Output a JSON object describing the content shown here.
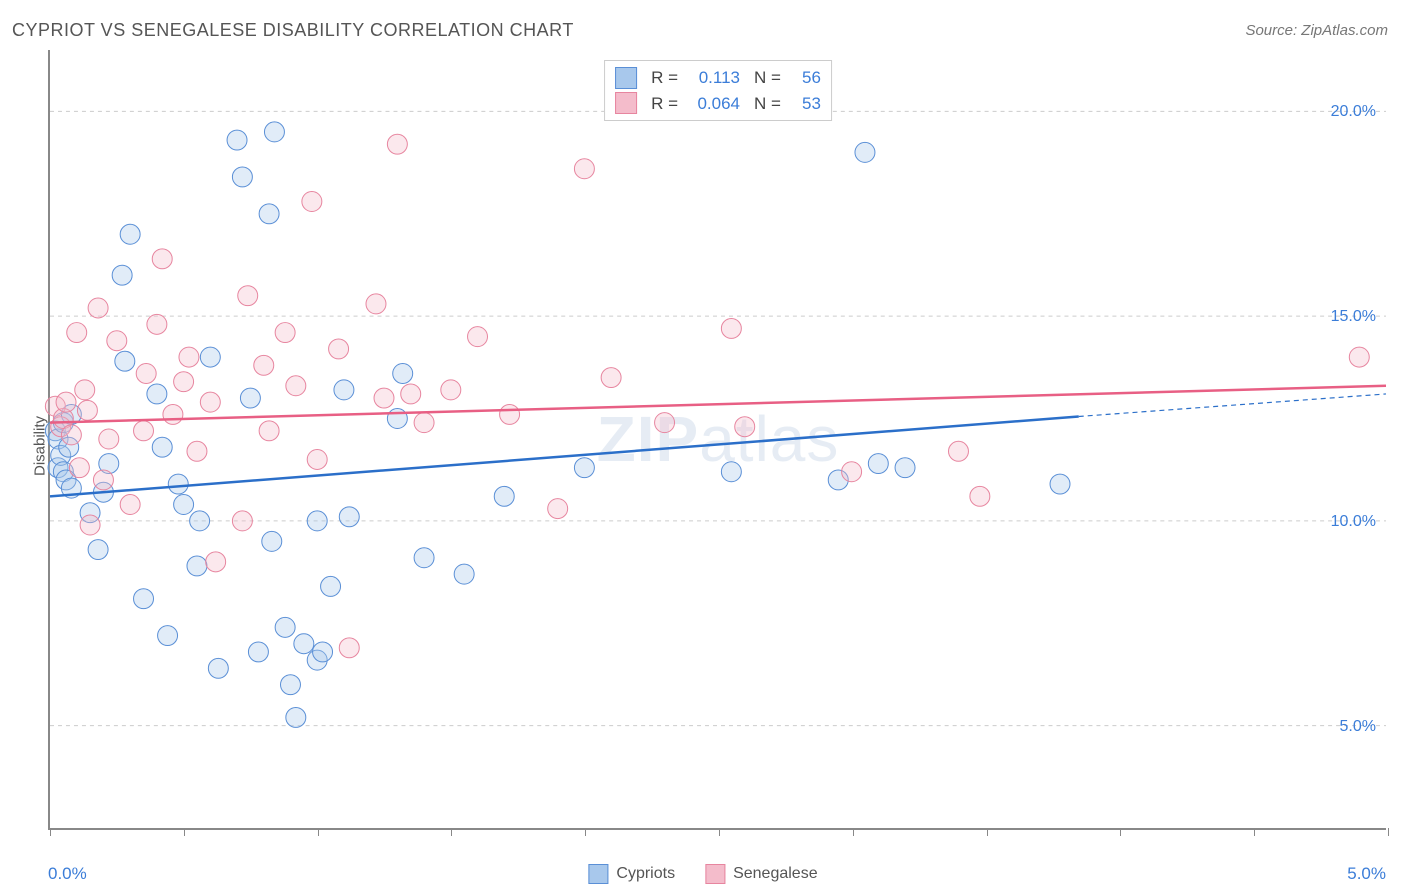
{
  "title": "CYPRIOT VS SENEGALESE DISABILITY CORRELATION CHART",
  "source": "Source: ZipAtlas.com",
  "watermark_zip": "ZIP",
  "watermark_atlas": "atlas",
  "yaxis_title": "Disability",
  "chart": {
    "type": "scatter",
    "background_color": "#ffffff",
    "grid_color": "#cccccc",
    "grid_dash": "4,4",
    "axis_color": "#888888",
    "xlim": [
      0,
      5
    ],
    "ylim": [
      2.5,
      21.5
    ],
    "xtick_positions": [
      0,
      0.5,
      1.0,
      1.5,
      2.0,
      2.5,
      3.0,
      3.5,
      4.0,
      4.5,
      5.0
    ],
    "xtick_labels": {
      "left": "0.0%",
      "right": "5.0%"
    },
    "yticks": [
      {
        "val": 5.0,
        "label": "5.0%"
      },
      {
        "val": 10.0,
        "label": "10.0%"
      },
      {
        "val": 15.0,
        "label": "15.0%"
      },
      {
        "val": 20.0,
        "label": "20.0%"
      }
    ],
    "label_color": "#3b7dd8",
    "label_fontsize": 16,
    "title_fontsize": 18,
    "title_color": "#555555",
    "marker_radius": 10,
    "marker_stroke_width": 1,
    "marker_fill_opacity": 0.35,
    "series": [
      {
        "name": "Cypriots",
        "fill": "#a8c8ec",
        "stroke": "#5a8fd6",
        "line_color": "#2b6fc9",
        "line_width": 2.5,
        "legend_R": "0.113",
        "legend_N": "56",
        "trend": {
          "x1": 0,
          "y1": 10.6,
          "x2_solid": 3.85,
          "y2_solid": 12.55,
          "x2_dash": 5.0,
          "y2_dash": 13.1
        },
        "points": [
          [
            0.02,
            12.2
          ],
          [
            0.03,
            12.0
          ],
          [
            0.03,
            11.3
          ],
          [
            0.04,
            11.6
          ],
          [
            0.05,
            11.2
          ],
          [
            0.05,
            12.4
          ],
          [
            0.06,
            11.0
          ],
          [
            0.07,
            11.8
          ],
          [
            0.08,
            10.8
          ],
          [
            0.08,
            12.6
          ],
          [
            0.15,
            10.2
          ],
          [
            0.18,
            9.3
          ],
          [
            0.2,
            10.7
          ],
          [
            0.22,
            11.4
          ],
          [
            0.27,
            16.0
          ],
          [
            0.28,
            13.9
          ],
          [
            0.3,
            17.0
          ],
          [
            0.35,
            8.1
          ],
          [
            0.4,
            13.1
          ],
          [
            0.44,
            7.2
          ],
          [
            0.5,
            10.4
          ],
          [
            0.55,
            8.9
          ],
          [
            0.56,
            10.0
          ],
          [
            0.6,
            14.0
          ],
          [
            0.63,
            6.4
          ],
          [
            0.7,
            19.3
          ],
          [
            0.72,
            18.4
          ],
          [
            0.75,
            13.0
          ],
          [
            0.78,
            6.8
          ],
          [
            0.82,
            17.5
          ],
          [
            0.83,
            9.5
          ],
          [
            0.84,
            19.5
          ],
          [
            0.88,
            7.4
          ],
          [
            0.9,
            6.0
          ],
          [
            0.92,
            5.2
          ],
          [
            0.95,
            7.0
          ],
          [
            1.0,
            10.0
          ],
          [
            1.0,
            6.6
          ],
          [
            1.02,
            6.8
          ],
          [
            1.05,
            8.4
          ],
          [
            1.1,
            13.2
          ],
          [
            1.12,
            10.1
          ],
          [
            1.3,
            12.5
          ],
          [
            1.32,
            13.6
          ],
          [
            1.4,
            9.1
          ],
          [
            1.55,
            8.7
          ],
          [
            1.7,
            10.6
          ],
          [
            2.0,
            11.3
          ],
          [
            2.55,
            11.2
          ],
          [
            2.95,
            11.0
          ],
          [
            3.05,
            19.0
          ],
          [
            3.1,
            11.4
          ],
          [
            3.2,
            11.3
          ],
          [
            3.78,
            10.9
          ],
          [
            0.42,
            11.8
          ],
          [
            0.48,
            10.9
          ]
        ]
      },
      {
        "name": "Senegalese",
        "fill": "#f4bccb",
        "stroke": "#e7859f",
        "line_color": "#e85f84",
        "line_width": 2.5,
        "legend_R": "0.064",
        "legend_N": "53",
        "trend": {
          "x1": 0,
          "y1": 12.4,
          "x2_solid": 5.0,
          "y2_solid": 13.3,
          "x2_dash": 5.0,
          "y2_dash": 13.3
        },
        "points": [
          [
            0.02,
            12.8
          ],
          [
            0.04,
            12.3
          ],
          [
            0.05,
            12.5
          ],
          [
            0.06,
            12.9
          ],
          [
            0.08,
            12.1
          ],
          [
            0.1,
            14.6
          ],
          [
            0.11,
            11.3
          ],
          [
            0.13,
            13.2
          ],
          [
            0.14,
            12.7
          ],
          [
            0.18,
            15.2
          ],
          [
            0.2,
            11.0
          ],
          [
            0.22,
            12.0
          ],
          [
            0.25,
            14.4
          ],
          [
            0.3,
            10.4
          ],
          [
            0.35,
            12.2
          ],
          [
            0.4,
            14.8
          ],
          [
            0.42,
            16.4
          ],
          [
            0.5,
            13.4
          ],
          [
            0.55,
            11.7
          ],
          [
            0.6,
            12.9
          ],
          [
            0.62,
            9.0
          ],
          [
            0.72,
            10.0
          ],
          [
            0.74,
            15.5
          ],
          [
            0.8,
            13.8
          ],
          [
            0.82,
            12.2
          ],
          [
            0.88,
            14.6
          ],
          [
            0.92,
            13.3
          ],
          [
            0.98,
            17.8
          ],
          [
            1.0,
            11.5
          ],
          [
            1.08,
            14.2
          ],
          [
            1.12,
            6.9
          ],
          [
            1.22,
            15.3
          ],
          [
            1.25,
            13.0
          ],
          [
            1.3,
            19.2
          ],
          [
            1.35,
            13.1
          ],
          [
            1.4,
            12.4
          ],
          [
            1.5,
            13.2
          ],
          [
            1.6,
            14.5
          ],
          [
            1.72,
            12.6
          ],
          [
            1.9,
            10.3
          ],
          [
            2.0,
            18.6
          ],
          [
            2.1,
            13.5
          ],
          [
            2.3,
            12.4
          ],
          [
            2.55,
            14.7
          ],
          [
            2.6,
            12.3
          ],
          [
            3.0,
            11.2
          ],
          [
            3.4,
            11.7
          ],
          [
            3.48,
            10.6
          ],
          [
            4.9,
            14.0
          ],
          [
            0.36,
            13.6
          ],
          [
            0.15,
            9.9
          ],
          [
            0.46,
            12.6
          ],
          [
            0.52,
            14.0
          ]
        ]
      }
    ]
  },
  "legend_box": {
    "R_label": "R =",
    "N_label": "N ="
  },
  "bottom_legend": {
    "s1": "Cypriots",
    "s2": "Senegalese"
  }
}
